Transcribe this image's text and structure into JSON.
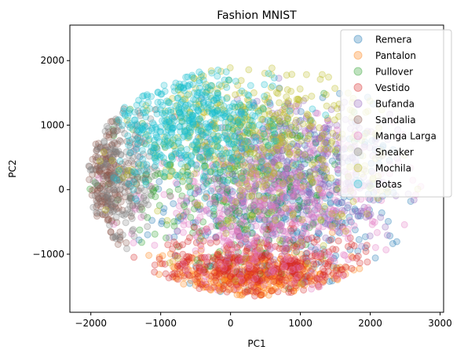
{
  "chart_data": {
    "type": "scatter",
    "title": "Fashion MNIST",
    "xlabel": "PC1",
    "ylabel": "PC2",
    "xlim": [
      -2300,
      3050
    ],
    "ylim": [
      -1900,
      2550
    ],
    "x_ticks": [
      -2000,
      -1000,
      0,
      1000,
      2000,
      3000
    ],
    "y_ticks": [
      -1000,
      0,
      1000,
      2000
    ],
    "x_tick_labels": [
      "−2000",
      "−1000",
      "0",
      "1000",
      "2000",
      "3000"
    ],
    "y_tick_labels": [
      "−1000",
      "0",
      "1000",
      "2000"
    ],
    "grid": false,
    "legend_position": "top-right",
    "point_alpha": 0.25,
    "series": [
      {
        "name": "Remera",
        "color": "#1f77b4",
        "cx": 800,
        "cy": -200,
        "sx": 850,
        "sy": 700,
        "n": 450
      },
      {
        "name": "Pantalon",
        "color": "#ff7f0e",
        "cx": 300,
        "cy": -1350,
        "sx": 700,
        "sy": 200,
        "n": 450
      },
      {
        "name": "Pullover",
        "color": "#2ca02c",
        "cx": 200,
        "cy": 200,
        "sx": 800,
        "sy": 650,
        "n": 400
      },
      {
        "name": "Vestido",
        "color": "#d62728",
        "cx": 400,
        "cy": -1200,
        "sx": 800,
        "sy": 250,
        "n": 450
      },
      {
        "name": "Bufanda",
        "color": "#9467bd",
        "cx": 1000,
        "cy": 300,
        "sx": 700,
        "sy": 600,
        "n": 400
      },
      {
        "name": "Sandalia",
        "color": "#8c564b",
        "cx": -1800,
        "cy": 150,
        "sx": 200,
        "sy": 500,
        "n": 250
      },
      {
        "name": "Manga Larga",
        "color": "#e377c2",
        "cx": 600,
        "cy": -300,
        "sx": 900,
        "sy": 600,
        "n": 550
      },
      {
        "name": "Sneaker",
        "color": "#7f7f7f",
        "cx": -1600,
        "cy": 200,
        "sx": 300,
        "sy": 550,
        "n": 250
      },
      {
        "name": "Mochila",
        "color": "#bcbd22",
        "cx": 400,
        "cy": 800,
        "sx": 900,
        "sy": 700,
        "n": 500
      },
      {
        "name": "Botas",
        "color": "#17becf",
        "cx": -600,
        "cy": 1000,
        "sx": 600,
        "sy": 450,
        "n": 550
      }
    ]
  }
}
